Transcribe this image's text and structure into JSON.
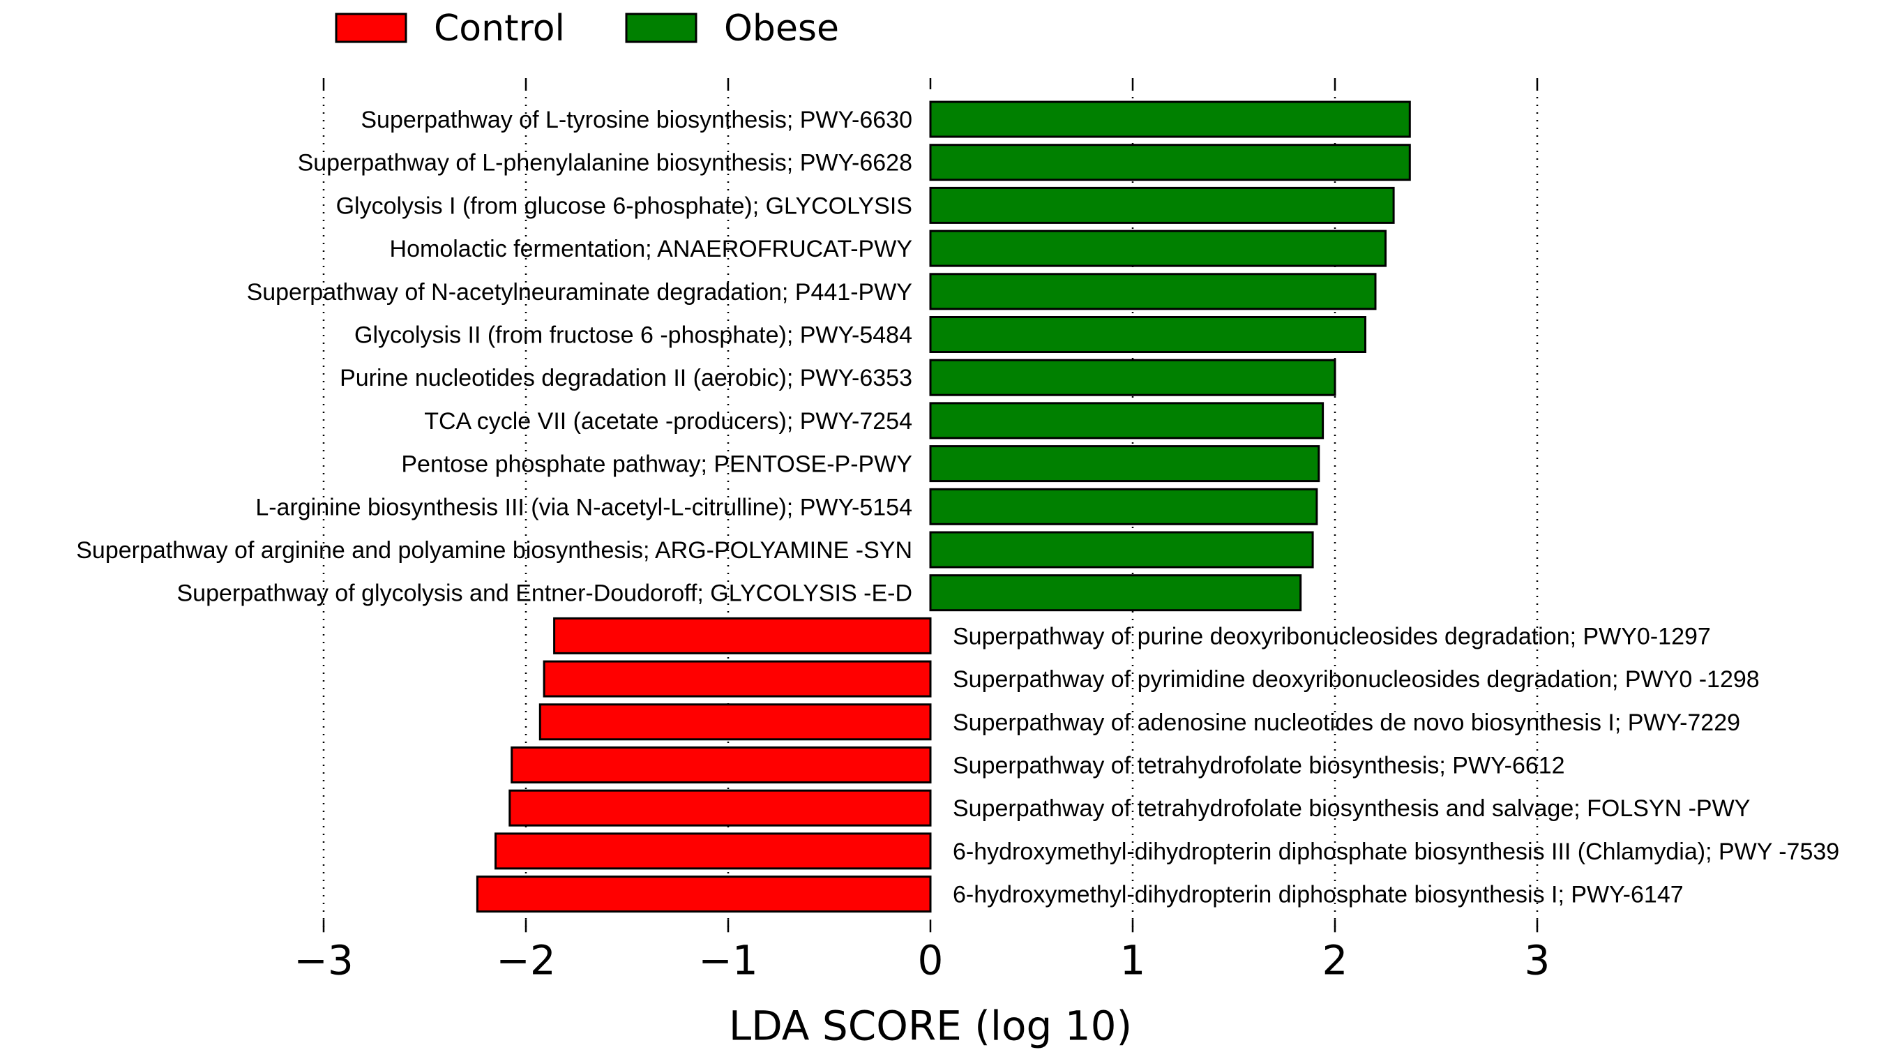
{
  "chart_data": {
    "type": "bar",
    "orientation": "horizontal",
    "xlabel": "LDA SCORE (log 10)",
    "ylabel": "",
    "xlim": [
      -3.0,
      3.0
    ],
    "xticks": [
      -3,
      -2,
      -1,
      0,
      1,
      2,
      3
    ],
    "xtick_labels": [
      "−3",
      "−2",
      "−1",
      "0",
      "1",
      "2",
      "3"
    ],
    "grid": "vertical dotted",
    "legend_position": "top-left",
    "legend": [
      {
        "name": "Control",
        "color": "#ff0000"
      },
      {
        "name": "Obese",
        "color": "#008000"
      }
    ],
    "series": [
      {
        "name": "Obese",
        "color": "#008000",
        "categories": [
          "Superpathway of L-tyrosine biosynthesis; PWY-6630",
          "Superpathway of L-phenylalanine biosynthesis; PWY-6628",
          "Glycolysis  I (from glucose 6-phosphate); GLYCOLYSIS",
          "Homolactic fermentation; ANAEROFRUCAT-PWY",
          "Superpathway of N-acetylneuraminate degradation; P441-PWY",
          "Glycolysis II (from fructose 6 -phosphate); PWY-5484",
          "Purine nucleotides degradation II (aerobic); PWY-6353",
          "TCA cycle VII (acetate -producers); PWY-7254",
          "Pentose phosphate pathway; PENTOSE-P-PWY",
          "L-arginine biosynthesis III (via N-acetyl-L-citrulline); PWY-5154",
          "Superpathway of arginine and polyamine biosynthesis; ARG-POLYAMINE -SYN",
          "Superpathway of glycolysis and Entner-Doudoroff; GLYCOLYSIS -E-D"
        ],
        "values": [
          2.37,
          2.37,
          2.29,
          2.25,
          2.2,
          2.15,
          2.0,
          1.94,
          1.92,
          1.91,
          1.89,
          1.83
        ]
      },
      {
        "name": "Control",
        "color": "#ff0000",
        "categories": [
          "Superpathway of purine deoxyribonucleosides degradation; PWY0-1297",
          "Superpathway of pyrimidine deoxyribonucleosides degradation; PWY0 -1298",
          "Superpathway of adenosine nucleotides de novo biosynthesis I; PWY-7229",
          "Superpathway of tetrahydrofolate biosynthesis; PWY-6612",
          "Superpathway of tetrahydrofolate biosynthesis and salvage; FOLSYN -PWY",
          "6-hydroxymethyl-dihydropterin diphosphate biosynthesis III (Chlamydia); PWY -7539",
          "6-hydroxymethyl-dihydropterin diphosphate biosynthesis I; PWY-6147"
        ],
        "values": [
          -1.86,
          -1.91,
          -1.93,
          -2.07,
          -2.08,
          -2.15,
          -2.24
        ]
      }
    ]
  }
}
